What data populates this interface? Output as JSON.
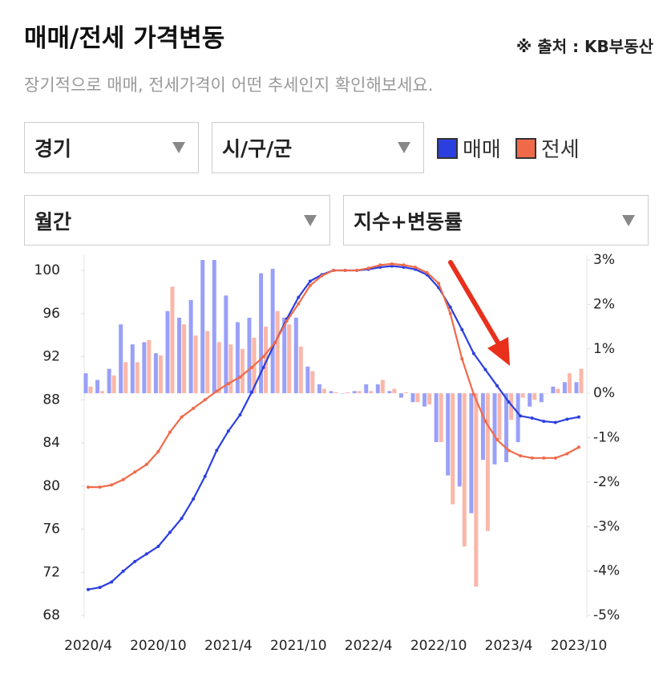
{
  "header": {
    "title": "매매/전세 가격변동",
    "source": "※ 출처 : KB부동산",
    "subtitle": "장기적으로 매매, 전세가격이 어떤 추세인지 확인해보세요."
  },
  "filters": {
    "region": "경기",
    "district": "시/구/군",
    "period": "월간",
    "mode": "지수+변동률"
  },
  "chart_data": {
    "type": "combo",
    "categories": [
      "2020/4",
      null,
      null,
      null,
      null,
      null,
      "2020/10",
      null,
      null,
      null,
      null,
      null,
      "2021/4",
      null,
      null,
      null,
      null,
      null,
      "2021/10",
      null,
      null,
      null,
      null,
      null,
      "2022/4",
      null,
      null,
      null,
      null,
      null,
      "2022/10",
      null,
      null,
      null,
      null,
      null,
      "2023/4",
      null,
      null,
      null,
      null,
      null,
      "2023/10"
    ],
    "ylim": [
      68,
      100
    ],
    "yticks": [
      68,
      72,
      76,
      80,
      84,
      88,
      92,
      96,
      100
    ],
    "y2lim": [
      -5,
      3
    ],
    "y2ticks": [
      {
        "value": -5,
        "label": "-5%"
      },
      {
        "value": -4,
        "label": "-4%"
      },
      {
        "value": -3,
        "label": "-3%"
      },
      {
        "value": -2,
        "label": "-2%"
      },
      {
        "value": -1,
        "label": "-1%"
      },
      {
        "value": 0,
        "label": "0%"
      },
      {
        "value": 1,
        "label": "1%"
      },
      {
        "value": 2,
        "label": "2%"
      },
      {
        "value": 3,
        "label": "3%"
      }
    ],
    "series": [
      {
        "name": "매매",
        "type": "line",
        "color": "#2b3fe0",
        "values": [
          70.4,
          70.6,
          71.1,
          72.1,
          73.0,
          73.7,
          74.4,
          75.7,
          77.0,
          78.8,
          80.9,
          83.3,
          85.1,
          86.6,
          88.7,
          91.0,
          93.3,
          95.5,
          97.5,
          99.0,
          99.6,
          100.0,
          100.0,
          100.0,
          100.1,
          100.3,
          100.4,
          100.3,
          100.1,
          99.6,
          98.4,
          96.6,
          94.5,
          92.3,
          90.8,
          89.3,
          87.8,
          86.5,
          86.3,
          86.0,
          85.9,
          86.2,
          86.4
        ]
      },
      {
        "name": "전세",
        "type": "line",
        "color": "#f06a4a",
        "values": [
          79.9,
          79.9,
          80.1,
          80.6,
          81.3,
          82.0,
          83.2,
          85.0,
          86.4,
          87.2,
          88.0,
          88.8,
          89.5,
          90.1,
          91.0,
          92.0,
          93.3,
          95.3,
          96.9,
          98.6,
          99.5,
          100.0,
          100.0,
          100.0,
          100.2,
          100.5,
          100.6,
          100.5,
          100.3,
          99.8,
          98.8,
          96.0,
          91.8,
          88.5,
          86.0,
          84.3,
          83.3,
          82.8,
          82.6,
          82.6,
          82.6,
          83.0,
          83.6
        ]
      },
      {
        "type": "bar",
        "axis": "y2",
        "color": "#8088f5",
        "values": [
          0.45,
          0.3,
          0.55,
          1.55,
          1.1,
          1.15,
          0.9,
          1.85,
          1.7,
          2.1,
          3.0,
          3.0,
          2.2,
          1.6,
          1.7,
          2.7,
          2.8,
          1.7,
          1.7,
          0.6,
          0.2,
          0.05,
          0.0,
          0.05,
          0.2,
          0.2,
          0.05,
          -0.1,
          -0.2,
          -0.3,
          -1.1,
          -1.85,
          -2.1,
          -2.7,
          -1.5,
          -1.6,
          -1.55,
          -1.1,
          -0.3,
          -0.2,
          0.15,
          0.25,
          0.25
        ]
      },
      {
        "type": "bar",
        "axis": "y2",
        "color": "#f9a594",
        "values": [
          0.15,
          0.05,
          0.4,
          0.7,
          0.7,
          1.2,
          0.85,
          2.4,
          1.55,
          1.3,
          1.4,
          1.15,
          1.1,
          1.0,
          1.25,
          1.5,
          1.85,
          1.55,
          1.05,
          0.5,
          0.1,
          0.02,
          0.02,
          0.05,
          0.05,
          0.3,
          0.1,
          0.02,
          -0.2,
          -0.25,
          -1.1,
          -2.5,
          -3.45,
          -4.35,
          -3.1,
          -1.05,
          -0.6,
          -0.1,
          -0.15,
          0.0,
          0.1,
          0.45,
          0.55
        ]
      }
    ]
  }
}
